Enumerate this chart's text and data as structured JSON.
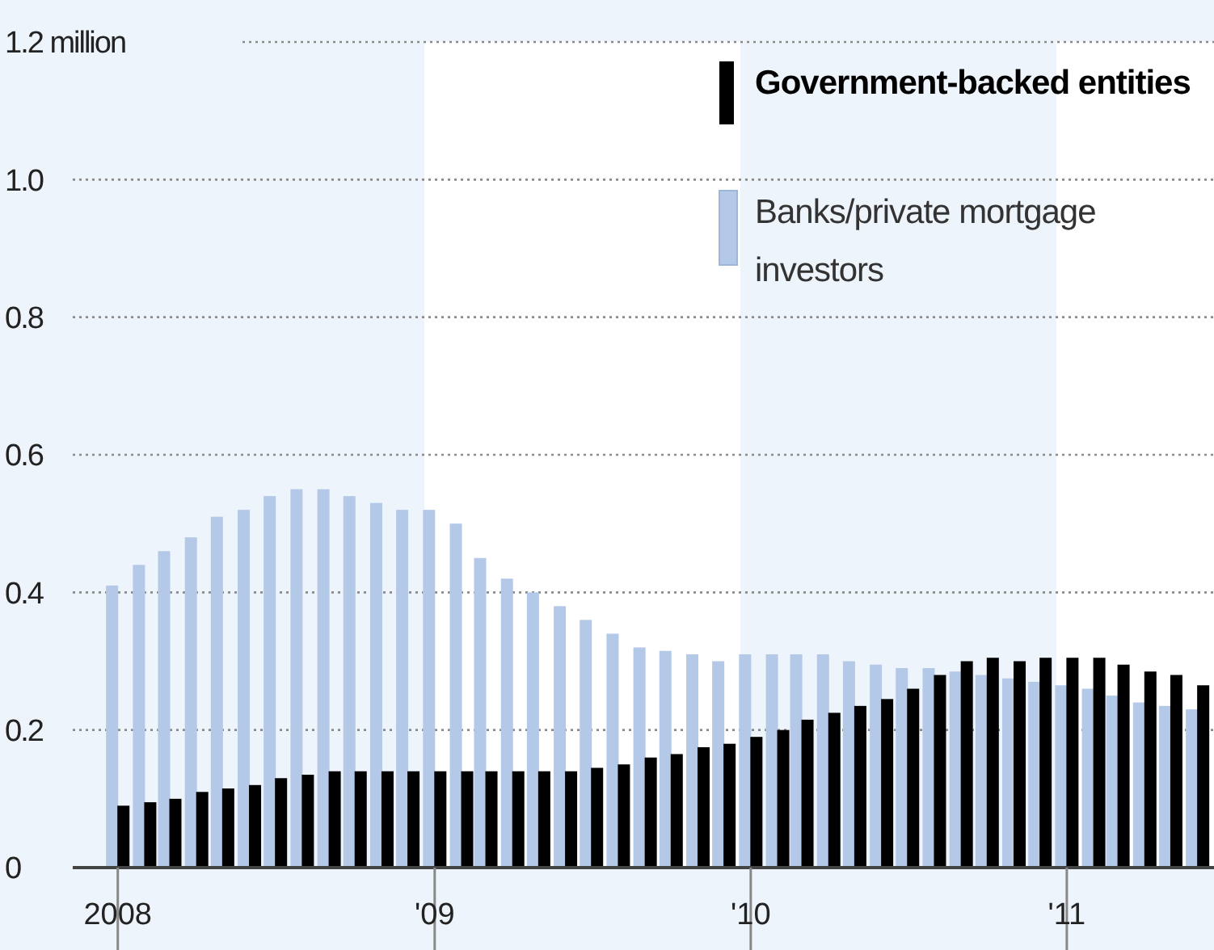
{
  "chart_data": {
    "type": "bar",
    "grid": "y",
    "legend": "top right",
    "x": [
      "2008-01",
      "2008-02",
      "2008-03",
      "2008-04",
      "2008-05",
      "2008-06",
      "2008-07",
      "2008-08",
      "2008-09",
      "2008-10",
      "2008-11",
      "2008-12",
      "2009-01",
      "2009-02",
      "2009-03",
      "2009-04",
      "2009-05",
      "2009-06",
      "2009-07",
      "2009-08",
      "2009-09",
      "2009-10",
      "2009-11",
      "2009-12",
      "2010-01",
      "2010-02",
      "2010-03",
      "2010-04",
      "2010-05",
      "2010-06",
      "2010-07",
      "2010-08",
      "2010-09",
      "2010-10",
      "2010-11",
      "2010-12",
      "2011-01",
      "2011-02",
      "2011-03",
      "2011-04",
      "2011-05",
      "2011-06"
    ],
    "xlim": [
      "2007-11-10",
      "2011-06-20"
    ],
    "xticks": [
      {
        "value": "2008-01",
        "label": "2008"
      },
      {
        "value": "2009-01",
        "label": "'09"
      },
      {
        "value": "2010-01",
        "label": "'10"
      },
      {
        "value": "2011-01",
        "label": "'11"
      }
    ],
    "ylim": [
      0,
      1.2
    ],
    "yticks": [
      0,
      0.2,
      0.4,
      0.6,
      0.8,
      {
        "value": 1,
        "label": "1.0"
      },
      {
        "value": 1.2,
        "label": "1.2 million"
      }
    ],
    "bands": [
      {
        "axis": "x",
        "from": "2008-12-20",
        "to": "2009-12-20",
        "color": "#ffffff"
      },
      {
        "axis": "x",
        "from": "2010-12-20",
        "to": "2011-06-20",
        "color": "#ffffff"
      }
    ],
    "series": [
      {
        "name": "Banks/private mortgage investors",
        "color": "#b4c8e8",
        "values": [
          0.41,
          0.44,
          0.46,
          0.48,
          0.51,
          0.52,
          0.54,
          0.55,
          0.55,
          0.54,
          0.53,
          0.52,
          0.52,
          0.5,
          0.45,
          0.42,
          0.4,
          0.38,
          0.36,
          0.34,
          0.32,
          0.315,
          0.31,
          0.3,
          0.31,
          0.31,
          0.31,
          0.31,
          0.3,
          0.295,
          0.29,
          0.29,
          0.285,
          0.28,
          0.275,
          0.27,
          0.265,
          0.26,
          0.25,
          0.24,
          0.235,
          0.23
        ]
      },
      {
        "name": "Government-backed entities",
        "color": "#000000",
        "values": [
          0.09,
          0.095,
          0.1,
          0.11,
          0.115,
          0.12,
          0.13,
          0.135,
          0.14,
          0.14,
          0.14,
          0.14,
          0.14,
          0.14,
          0.14,
          0.14,
          0.14,
          0.14,
          0.145,
          0.15,
          0.16,
          0.165,
          0.175,
          0.18,
          0.19,
          0.2,
          0.215,
          0.225,
          0.235,
          0.245,
          0.26,
          0.28,
          0.3,
          0.305,
          0.3,
          0.305,
          0.305,
          0.305,
          0.295,
          0.285,
          0.28,
          0.265
        ]
      }
    ]
  }
}
